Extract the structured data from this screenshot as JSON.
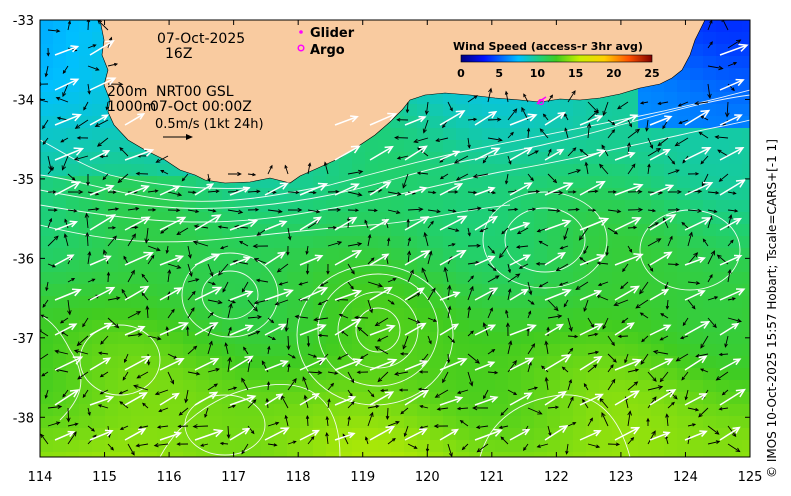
{
  "map": {
    "date": "07-Oct-2025",
    "hour": "16Z",
    "depth_line1": "200m",
    "depth_line2": "1000m",
    "product": "NRT00 GSL",
    "analysis_time": "07-Oct 00:00Z",
    "vector_scale_label": "0.5m/s (1kt 24h)",
    "legend": {
      "glider_label": "Glider",
      "argo_label": "Argo",
      "glider_color": "#ff00ff",
      "argo_color": "#ff00ff"
    },
    "colorbar": {
      "title": "Wind Speed (access-r 3hr avg)",
      "ticks": [
        "0",
        "5",
        "10",
        "15",
        "20",
        "25"
      ],
      "min": 0,
      "max": 25
    },
    "credit": "© IMOS 10-Oct-2025 15:57 Hobart; Tscale=CARS+[-1 1]",
    "land_color": "#f9cba0",
    "xaxis": {
      "min": 114,
      "max": 125,
      "tick_labels": [
        "114",
        "115",
        "116",
        "117",
        "118",
        "119",
        "120",
        "121",
        "122",
        "123",
        "124",
        "125"
      ]
    },
    "yaxis": {
      "min": -38.5,
      "max": -33,
      "tick_labels": [
        "-33",
        "-34",
        "-35",
        "-36",
        "-37",
        "-38"
      ]
    }
  }
}
